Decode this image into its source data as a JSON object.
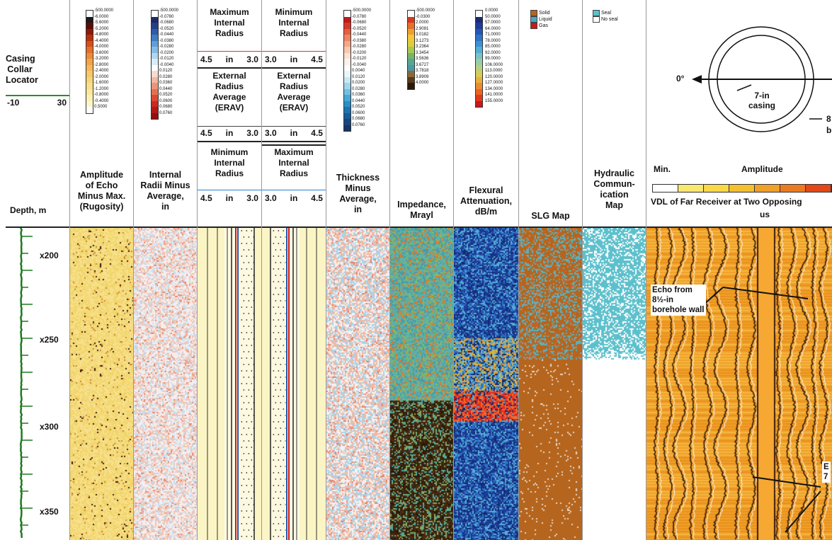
{
  "ccl": {
    "title": "Casing\nCollar\nLocator",
    "min": "-10",
    "max": "30",
    "depth_label": "Depth, m"
  },
  "depth_ticks": [
    "x200",
    "x250",
    "x300",
    "x350"
  ],
  "rugosity": {
    "title": "Amplitude\nof Echo\nMinus Max.\n(Rugosity)",
    "scale": [
      "-500.0000",
      "-6.0000",
      "-5.6000",
      "-5.2000",
      "-4.8000",
      "-4.4000",
      "-4.0000",
      "-3.6000",
      "-3.2000",
      "-2.8000",
      "-2.4000",
      "-2.0000",
      "-1.6000",
      "-1.2000",
      "-0.8000",
      "-0.4000",
      "0.5000"
    ],
    "colors": [
      "#ffffff",
      "#1a1a1a",
      "#5a0d05",
      "#8c1a08",
      "#b8300a",
      "#d4501a",
      "#e2702a",
      "#ec8c38",
      "#f2a448",
      "#f6b858",
      "#f8c868",
      "#f9d478",
      "#fae08a",
      "#fbe89c",
      "#fcf0b4",
      "#fdf6cc",
      "#ffffff"
    ]
  },
  "internal_radii": {
    "title": "Internal\nRadii Minus\nAverage,\nin",
    "scale": [
      "-500.0000",
      "-0.0780",
      "-0.0680",
      "-0.0520",
      "-0.0440",
      "-0.0380",
      "-0.0280",
      "-0.0200",
      "-0.0120",
      "-0.0040",
      "0.0120",
      "0.0280",
      "0.0360",
      "0.0440",
      "0.0520",
      "0.0600",
      "0.0680",
      "0.0760"
    ],
    "colors": [
      "#ffffff",
      "#1b2a6b",
      "#243f8a",
      "#2f5ba8",
      "#3f7cc2",
      "#5e9fd6",
      "#84bde4",
      "#b0d6ee",
      "#d8ebf6",
      "#ffffff",
      "#f7d9cf",
      "#f2b8a4",
      "#ec9478",
      "#e4704f",
      "#da4a30",
      "#cc2a1e",
      "#b51616",
      "#960c0c"
    ]
  },
  "max_internal_radius": {
    "title": "Maximum\nInternal\nRadius",
    "left": "4.5",
    "unit": "in",
    "right": "3.0"
  },
  "erav_left": {
    "title": "External\nRadius\nAverage\n(ERAV)",
    "left": "4.5",
    "unit": "in",
    "right": "3.0"
  },
  "min_internal_radius": {
    "title": "Minimum\nInternal\nRadius",
    "left": "4.5",
    "unit": "in",
    "right": "3.0"
  },
  "min_internal_radius_r": {
    "title": "Minimum\nInternal\nRadius",
    "left": "3.0",
    "unit": "in",
    "right": "4.5"
  },
  "erav_right": {
    "title": "External\nRadius\nAverage\n(ERAV)",
    "left": "3.0",
    "unit": "in",
    "right": "4.5"
  },
  "max_internal_radius_r": {
    "title": "Maximum\nInternal\nRadius",
    "left": "3.0",
    "unit": "in",
    "right": "4.5"
  },
  "thickness": {
    "title": "Thickness\nMinus\nAverage,\nin",
    "scale": [
      "-500.0000",
      "-0.0780",
      "-0.0680",
      "-0.0520",
      "-0.0440",
      "-0.0380",
      "-0.0280",
      "-0.0200",
      "-0.0120",
      "-0.0040",
      "0.0040",
      "0.0120",
      "0.0200",
      "0.0280",
      "0.0360",
      "0.0440",
      "0.0520",
      "0.0600",
      "0.0680",
      "0.0760"
    ],
    "colors": [
      "#ffffff",
      "#c21a1a",
      "#d63a2a",
      "#e45e44",
      "#ee8464",
      "#f4a888",
      "#f8c8b0",
      "#fbe2d6",
      "#fdf1ea",
      "#ffffff",
      "#eaf6fa",
      "#c8e8f4",
      "#a0d6ec",
      "#72c0e2",
      "#48a8d6",
      "#2a8ec8",
      "#1e72b2",
      "#1a5a98",
      "#19457e",
      "#183466"
    ]
  },
  "impedance": {
    "title": "Impedance,\nMrayl",
    "scale": [
      "-500.0000",
      "-0.0300",
      "2.0000",
      "2.9091",
      "3.0182",
      "3.1273",
      "3.2364",
      "3.3454",
      "3.5636",
      "3.6727",
      "3.7818",
      "3.8909",
      "4.0000"
    ],
    "colors": [
      "#ffffff",
      "#d63a1a",
      "#e4702a",
      "#f0a030",
      "#f2c838",
      "#d8d040",
      "#a8c850",
      "#78b468",
      "#56a890",
      "#4a98a8",
      "#8a6a3a",
      "#5a3a18",
      "#2a1a0a"
    ]
  },
  "flexural": {
    "title": "Flexural\nAttenuation,\ndB/m",
    "scale": [
      "0.0000",
      "50.0000",
      "57.0000",
      "64.0000",
      "71.0000",
      "78.0000",
      "85.0000",
      "92.0000",
      "99.0000",
      "106.0000",
      "113.0000",
      "120.0000",
      "127.0000",
      "134.0000",
      "141.0000",
      "155.0000"
    ],
    "colors": [
      "#ffffff",
      "#1a2a7a",
      "#1e3c98",
      "#2456b4",
      "#2e74c8",
      "#3c92d4",
      "#56aed8",
      "#7ac2c8",
      "#9acca8",
      "#bad080",
      "#d6cc58",
      "#e6b040",
      "#ec8c30",
      "#ea6424",
      "#e03a1c",
      "#c81818"
    ]
  },
  "slg": {
    "title": "SLG Map",
    "legend": [
      {
        "label": "Solid",
        "color": "#b5651d"
      },
      {
        "label": "Liquid",
        "color": "#4aa8c0"
      },
      {
        "label": "Gas",
        "color": "#cc1a1a"
      }
    ]
  },
  "hydraulic": {
    "title": "Hydraulic\nCommun-\nication\nMap",
    "legend": [
      {
        "label": "Seal",
        "color": "#5cc0cc"
      },
      {
        "label": "No seal",
        "color": "#ffffff"
      }
    ]
  },
  "vdl": {
    "angle": "0°",
    "casing_label": "7-in\ncasing",
    "partial_right": "8\nb",
    "amp_min": "Min.",
    "amp_label": "Amplitude",
    "colors": [
      "#ffffff",
      "#f8e870",
      "#f8d848",
      "#f4c030",
      "#f0a028",
      "#ec7a20",
      "#e44818"
    ],
    "title": "VDL of Far Receiver at Two Opposing",
    "title2": "us",
    "echo_label": "Echo from\n8½-in\nborehole wall",
    "echo2_label": "E\n7"
  }
}
